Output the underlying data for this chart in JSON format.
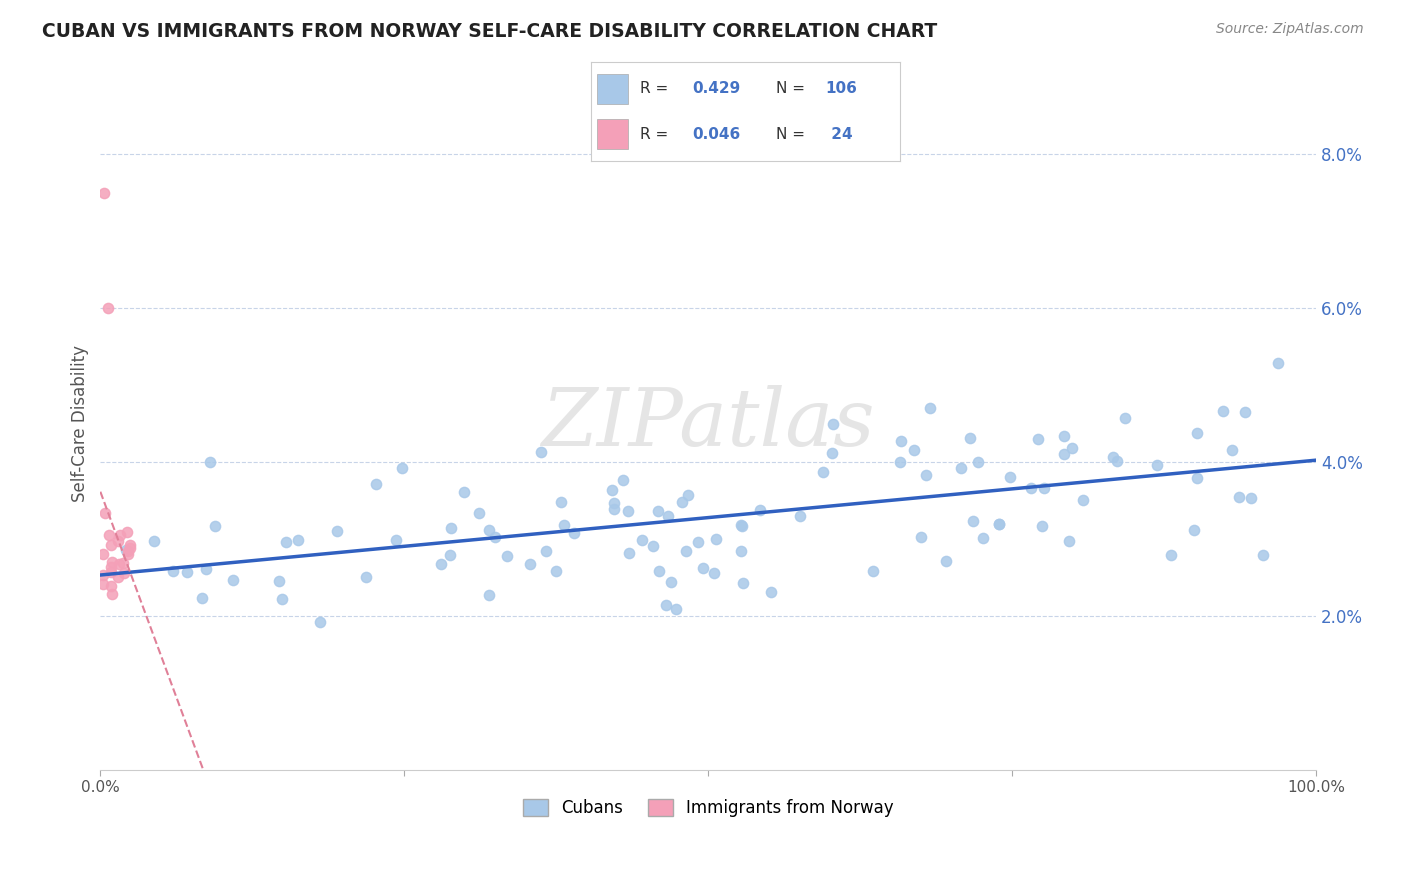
{
  "title": "CUBAN VS IMMIGRANTS FROM NORWAY SELF-CARE DISABILITY CORRELATION CHART",
  "source": "Source: ZipAtlas.com",
  "ylabel_label": "Self-Care Disability",
  "legend_labels": [
    "Cubans",
    "Immigrants from Norway"
  ],
  "r_cubans": 0.429,
  "n_cubans": 106,
  "r_norway": 0.046,
  "n_norway": 24,
  "cubans_color": "#a8c8e8",
  "norway_color": "#f4a0b8",
  "cubans_line_color": "#3060c0",
  "norway_line_color": "#e08098",
  "background_color": "#ffffff",
  "watermark_text": "ZIPatlas",
  "xmin": 0.0,
  "xmax": 1.0,
  "ymin": 0.0,
  "ymax": 0.09,
  "ytick_vals": [
    0.02,
    0.04,
    0.06,
    0.08
  ],
  "ytick_labels": [
    "2.0%",
    "4.0%",
    "6.0%",
    "8.0%"
  ],
  "xtick_vals": [
    0.0,
    1.0
  ],
  "xtick_labels": [
    "0.0%",
    "100.0%"
  ],
  "grid_color": "#c8d4e8",
  "title_color": "#222222",
  "source_color": "#888888",
  "tick_label_color_blue": "#4472c4",
  "tick_label_color_x": "#555555"
}
